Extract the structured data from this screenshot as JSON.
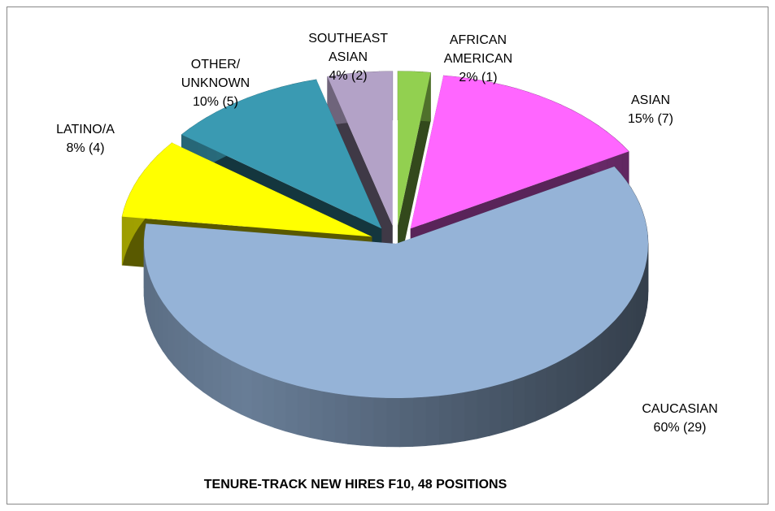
{
  "chart_data": {
    "type": "pie3d",
    "title": "TENURE-TRACK NEW HIRES F10, 48 POSITIONS",
    "categories": [
      "AFRICAN AMERICAN",
      "ASIAN",
      "CAUCASIAN",
      "LATINO/A",
      "OTHER/ UNKNOWN",
      "SOUTHEAST ASIAN"
    ],
    "values": [
      1,
      7,
      29,
      4,
      5,
      2
    ],
    "value_labels": [
      "2% (1)",
      "15% (7)",
      "60% (29)",
      "8% (4)",
      "10% (5)",
      "4% (2)"
    ],
    "colors": [
      "#92d050",
      "#ff66ff",
      "#95b3d7",
      "#ffff00",
      "#3a9ab2",
      "#b3a2c7"
    ]
  }
}
